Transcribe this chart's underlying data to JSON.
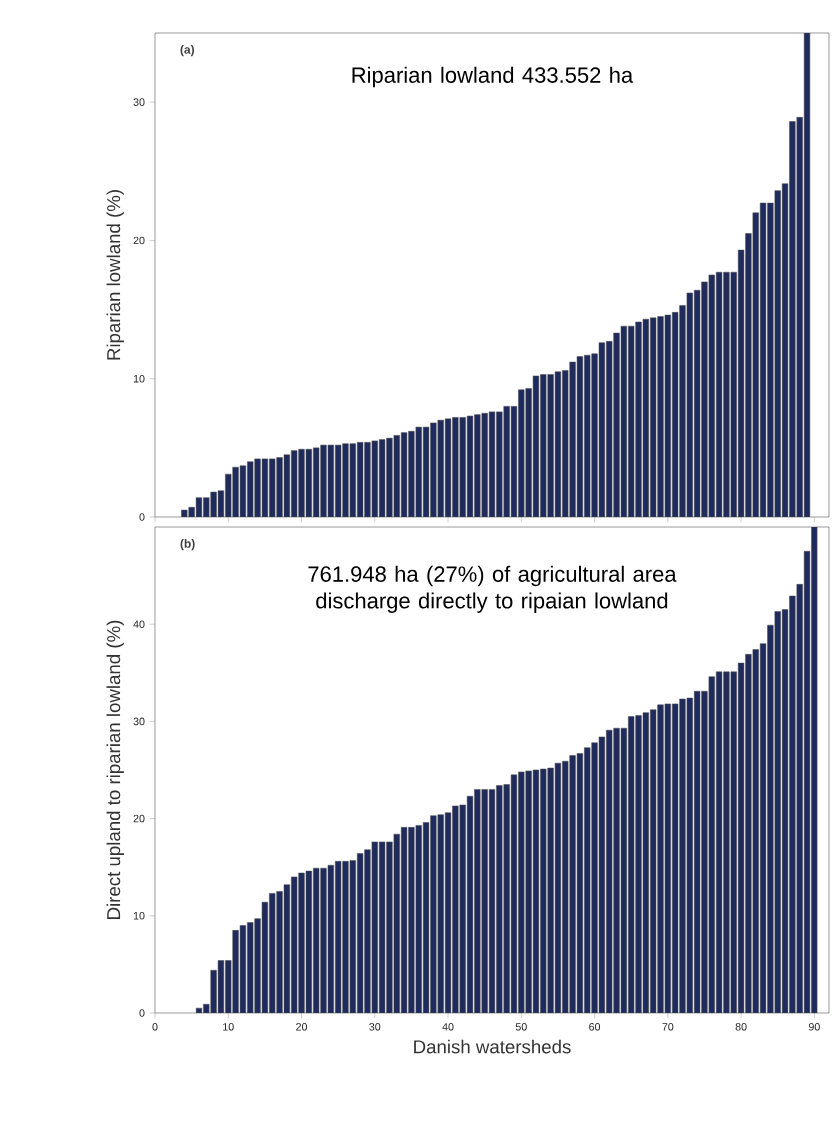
{
  "chart_data": [
    {
      "type": "bar",
      "ylabel": "Riparian lowland (%)",
      "color": "#1f2b5c",
      "xlim": [
        0,
        92
      ],
      "ylim": [
        0,
        35
      ],
      "xticks": [
        0,
        10,
        20,
        30,
        40,
        50,
        60,
        70,
        80,
        90
      ],
      "yticks": [
        0,
        10,
        20,
        30
      ],
      "tick_labels": "y",
      "annotations": [
        "(a)",
        "Riparian lowland 433.552 ha"
      ],
      "x": [
        4,
        5,
        6,
        7,
        8,
        9,
        10,
        11,
        12,
        13,
        14,
        15,
        16,
        17,
        18,
        19,
        20,
        21,
        22,
        23,
        24,
        25,
        26,
        27,
        28,
        29,
        30,
        31,
        32,
        33,
        34,
        35,
        36,
        37,
        38,
        39,
        40,
        41,
        42,
        43,
        44,
        45,
        46,
        47,
        48,
        49,
        50,
        51,
        52,
        53,
        54,
        55,
        56,
        57,
        58,
        59,
        60,
        61,
        62,
        63,
        64,
        65,
        66,
        67,
        68,
        69,
        70,
        71,
        72,
        73,
        74,
        75,
        76,
        77,
        78,
        79,
        80,
        81,
        82,
        83,
        84,
        85,
        86,
        87,
        88,
        89
      ],
      "values": [
        0.5,
        0.7,
        1.4,
        1.4,
        1.8,
        1.9,
        3.1,
        3.6,
        3.7,
        4.0,
        4.2,
        4.2,
        4.2,
        4.3,
        4.5,
        4.8,
        4.9,
        4.9,
        5.0,
        5.2,
        5.2,
        5.2,
        5.3,
        5.3,
        5.4,
        5.4,
        5.5,
        5.6,
        5.7,
        5.9,
        6.1,
        6.2,
        6.5,
        6.5,
        6.8,
        7.0,
        7.1,
        7.2,
        7.2,
        7.3,
        7.4,
        7.5,
        7.6,
        7.6,
        8.0,
        8.0,
        9.2,
        9.3,
        10.2,
        10.3,
        10.3,
        10.5,
        10.6,
        11.2,
        11.6,
        11.7,
        11.8,
        12.6,
        12.7,
        13.3,
        13.8,
        13.8,
        14.1,
        14.3,
        14.4,
        14.5,
        14.6,
        14.8,
        15.3,
        16.2,
        16.4,
        17.0,
        17.5,
        17.7,
        17.7,
        17.7,
        19.3,
        20.5,
        22.0,
        22.7,
        22.7,
        23.6,
        24.1,
        28.6,
        28.9,
        35
      ]
    },
    {
      "type": "bar",
      "xlabel": "Danish watersheds",
      "ylabel": "Direct upland to riparian lowland (%)",
      "color": "#1f2b5c",
      "xlim": [
        0,
        92
      ],
      "ylim": [
        0,
        50
      ],
      "xticks": [
        0,
        10,
        20,
        30,
        40,
        50,
        60,
        70,
        80,
        90
      ],
      "yticks": [
        0,
        10,
        20,
        30,
        40
      ],
      "annotations": [
        "(b)",
        "761.948 ha (27%) of agricultural area discharge directly to ripaian lowland"
      ],
      "x": [
        6,
        7,
        8,
        9,
        10,
        11,
        12,
        13,
        14,
        15,
        16,
        17,
        18,
        19,
        20,
        21,
        22,
        23,
        24,
        25,
        26,
        27,
        28,
        29,
        30,
        31,
        32,
        33,
        34,
        35,
        36,
        37,
        38,
        39,
        40,
        41,
        42,
        43,
        44,
        45,
        46,
        47,
        48,
        49,
        50,
        51,
        52,
        53,
        54,
        55,
        56,
        57,
        58,
        59,
        60,
        61,
        62,
        63,
        64,
        65,
        66,
        67,
        68,
        69,
        70,
        71,
        72,
        73,
        74,
        75,
        76,
        77,
        78,
        79,
        80,
        81,
        82,
        83,
        84,
        85,
        86,
        87,
        88,
        89,
        90
      ],
      "values": [
        0.5,
        0.9,
        4.4,
        5.4,
        5.4,
        8.5,
        9.0,
        9.3,
        9.7,
        11.4,
        12.3,
        12.5,
        13.2,
        14.0,
        14.4,
        14.6,
        14.9,
        14.9,
        15.2,
        15.6,
        15.6,
        15.7,
        16.4,
        16.8,
        17.6,
        17.6,
        17.6,
        18.4,
        19.1,
        19.1,
        19.3,
        19.6,
        20.3,
        20.4,
        20.6,
        21.3,
        21.4,
        22.3,
        23.0,
        23.0,
        23.0,
        23.4,
        23.5,
        24.5,
        24.8,
        24.9,
        25.0,
        25.1,
        25.2,
        25.7,
        25.9,
        26.5,
        26.7,
        27.3,
        27.8,
        28.4,
        29.1,
        29.3,
        29.3,
        30.5,
        30.6,
        30.9,
        31.2,
        31.7,
        31.8,
        31.8,
        32.3,
        32.4,
        33.1,
        33.1,
        34.6,
        35.1,
        35.1,
        35.1,
        36.0,
        36.9,
        37.4,
        38.0,
        39.9,
        41.3,
        41.5,
        42.9,
        44.1,
        47.5,
        50
      ]
    }
  ]
}
